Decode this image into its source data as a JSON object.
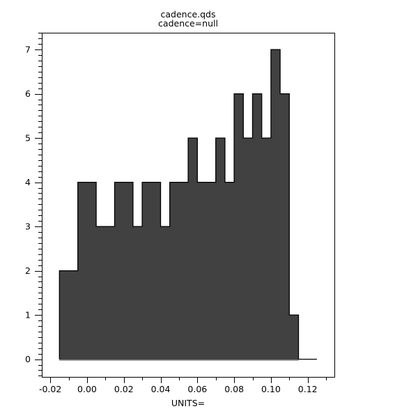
{
  "chart_data": {
    "type": "bar",
    "subtype": "histogram",
    "title": "cadence.qds",
    "subtitle": "cadence=null",
    "xlabel": "UNITS=",
    "ylabel": "",
    "bins": {
      "start": -0.015,
      "width": 0.005,
      "counts": [
        2,
        2,
        4,
        4,
        3,
        3,
        4,
        4,
        3,
        4,
        4,
        3,
        4,
        4,
        5,
        4,
        4,
        5,
        4,
        6,
        5,
        6,
        5,
        7,
        6,
        1,
        0,
        0
      ]
    },
    "total_samples": 106,
    "x_ticks": {
      "major": [
        {
          "value": -0.02,
          "label": "-0.02"
        },
        {
          "value": 0.0,
          "label": "0.00"
        },
        {
          "value": 0.02,
          "label": "0.02"
        },
        {
          "value": 0.04,
          "label": "0.04"
        },
        {
          "value": 0.06,
          "label": "0.06"
        },
        {
          "value": 0.08,
          "label": "0.08"
        },
        {
          "value": 0.1,
          "label": "0.10"
        },
        {
          "value": 0.12,
          "label": "0.12"
        }
      ],
      "minor": [
        -0.01,
        0.01,
        0.03,
        0.05,
        0.07,
        0.09,
        0.11,
        0.13
      ]
    },
    "y_ticks": {
      "major": [
        {
          "value": 0,
          "label": "0"
        },
        {
          "value": 1,
          "label": "1"
        },
        {
          "value": 2,
          "label": "2"
        },
        {
          "value": 3,
          "label": "3"
        },
        {
          "value": 4,
          "label": "4"
        },
        {
          "value": 5,
          "label": "5"
        },
        {
          "value": 6,
          "label": "6"
        },
        {
          "value": 7,
          "label": "7"
        }
      ],
      "minor_step": 0.125
    },
    "xlim": [
      -0.0246,
      0.1345
    ],
    "ylim": [
      -0.4,
      7.38
    ],
    "grid": false,
    "legend": null,
    "colors": {
      "bar_fill": "#414141",
      "outline": "#000000",
      "baseline": "#7d7d7d",
      "axis": "#000000",
      "text": "#000000",
      "background": "#ffffff"
    }
  }
}
